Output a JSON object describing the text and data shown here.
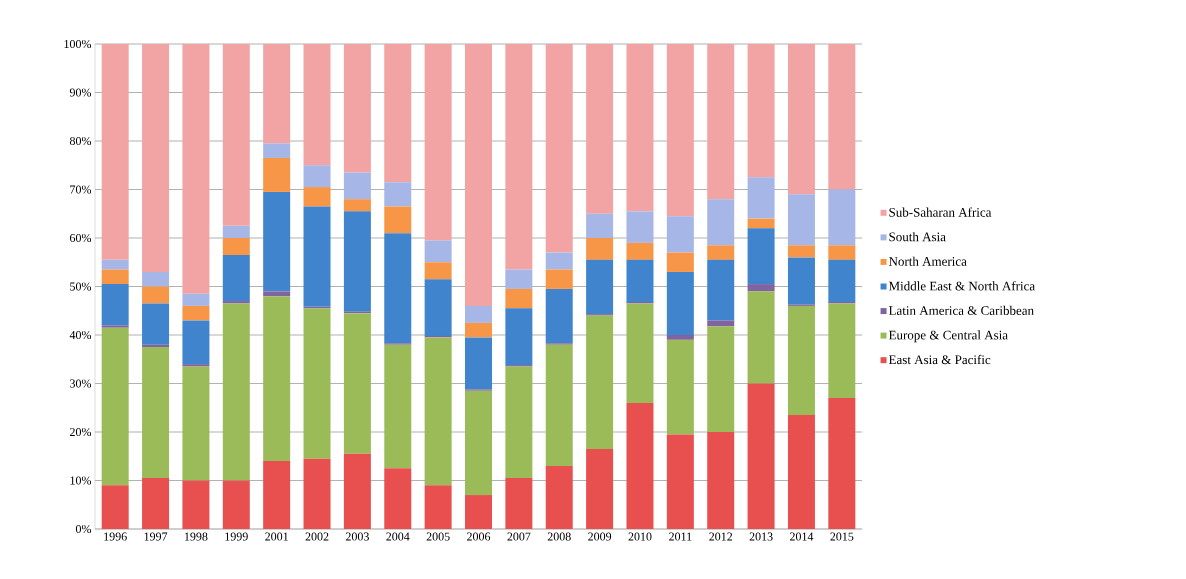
{
  "chart_data": {
    "type": "bar",
    "stacked": true,
    "categories": [
      "1996",
      "1997",
      "1998",
      "1999",
      "2001",
      "2002",
      "2003",
      "2004",
      "2005",
      "2006",
      "2007",
      "2008",
      "2009",
      "2010",
      "2011",
      "2012",
      "2013",
      "2014",
      "2015"
    ],
    "series": [
      {
        "name": "East Asia & Pacific",
        "color": "#e8504f",
        "values": [
          9,
          10.5,
          10,
          10,
          14,
          14.5,
          15.5,
          12.5,
          9,
          7,
          10.5,
          13,
          16.5,
          26,
          19.5,
          20,
          30,
          23.5,
          27
        ]
      },
      {
        "name": "Europe & Central Asia",
        "color": "#9bbb59",
        "values": [
          32.5,
          27,
          23.5,
          36.5,
          34,
          31,
          29,
          25.5,
          30.5,
          21.5,
          23,
          25,
          27.5,
          20.5,
          19.5,
          21.8,
          19,
          22.5,
          19.5
        ]
      },
      {
        "name": "Latin America & Caribbean",
        "color": "#8064a2",
        "values": [
          0.5,
          0.5,
          0.5,
          0.5,
          1,
          0.3,
          0.3,
          0.3,
          0.3,
          0.3,
          0.3,
          0.3,
          0.3,
          0.3,
          1,
          1.2,
          1.5,
          0.3,
          0.3
        ]
      },
      {
        "name": "Middle East & North Africa",
        "color": "#3f84cc",
        "values": [
          8.5,
          8.5,
          9,
          9.5,
          20.5,
          20.7,
          20.7,
          22.7,
          11.7,
          10.7,
          11.7,
          11.2,
          11.2,
          8.7,
          13,
          12.5,
          11.5,
          9.7,
          8.7
        ]
      },
      {
        "name": "North America",
        "color": "#f79646",
        "values": [
          3,
          3.5,
          3,
          3.5,
          7,
          4,
          2.5,
          5.5,
          3.5,
          3,
          4,
          4,
          4.5,
          3.5,
          4,
          3,
          2,
          2.5,
          3
        ]
      },
      {
        "name": "South Asia",
        "color": "#a6b6e6",
        "values": [
          2,
          3,
          2.5,
          2.5,
          3,
          4.5,
          5.5,
          5,
          4.5,
          3.5,
          4,
          3.5,
          5,
          6.5,
          7.5,
          9.5,
          8.5,
          10.5,
          11.5
        ]
      },
      {
        "name": "Sub-Saharan Africa",
        "color": "#f2a3a3",
        "values": [
          44.5,
          47,
          51.5,
          37.5,
          20.5,
          25,
          26.5,
          28.5,
          40.5,
          54,
          46.5,
          43,
          35,
          34.5,
          35.5,
          32,
          27.5,
          31,
          30
        ]
      }
    ],
    "ylim": [
      0,
      100
    ],
    "yticks": [
      {
        "value": 0,
        "label": "0%"
      },
      {
        "value": 10,
        "label": "10%"
      },
      {
        "value": 20,
        "label": "20%"
      },
      {
        "value": 30,
        "label": "30%"
      },
      {
        "value": 40,
        "label": "40%"
      },
      {
        "value": 50,
        "label": "50%"
      },
      {
        "value": 60,
        "label": "60%"
      },
      {
        "value": 70,
        "label": "70%"
      },
      {
        "value": 80,
        "label": "80%"
      },
      {
        "value": 90,
        "label": "90%"
      },
      {
        "value": 100,
        "label": "100%"
      }
    ],
    "grid": "y",
    "legend": "right"
  }
}
